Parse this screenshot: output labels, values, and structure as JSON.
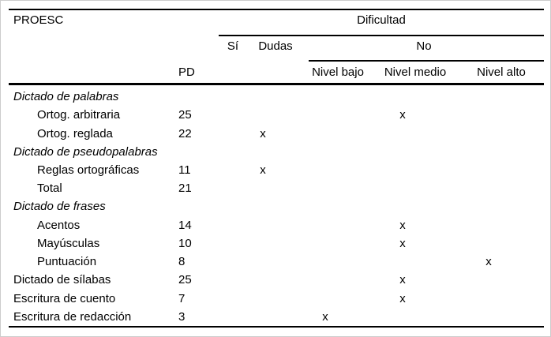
{
  "table": {
    "corner_label": "PROESC",
    "dificultad_header": "Dificultad",
    "col_groups": {
      "si": "Sí",
      "dudas": "Dudas",
      "no": "No"
    },
    "pd_header": "PD",
    "no_levels": [
      "Nivel bajo",
      "Nivel medio",
      "Nivel alto"
    ],
    "mark_glyph": "x",
    "rows": [
      {
        "label": "Dictado de palabras",
        "style": "section",
        "pd": "",
        "mark": ""
      },
      {
        "label": "Ortog. arbitraria",
        "style": "indent",
        "pd": "25",
        "mark": "nivel_medio"
      },
      {
        "label": "Ortog. reglada",
        "style": "indent",
        "pd": "22",
        "mark": "dudas"
      },
      {
        "label": "Dictado de pseudopalabras",
        "style": "section",
        "pd": "",
        "mark": ""
      },
      {
        "label": "Reglas ortográficas",
        "style": "indent",
        "pd": "11",
        "mark": "dudas"
      },
      {
        "label": "Total",
        "style": "indent",
        "pd": "21",
        "mark": ""
      },
      {
        "label": "Dictado de frases",
        "style": "section",
        "pd": "",
        "mark": ""
      },
      {
        "label": "Acentos",
        "style": "indent",
        "pd": "14",
        "mark": "nivel_medio"
      },
      {
        "label": "Mayúsculas",
        "style": "indent",
        "pd": "10",
        "mark": "nivel_medio"
      },
      {
        "label": "Puntuación",
        "style": "indent",
        "pd": "8",
        "mark": "nivel_alto"
      },
      {
        "label": "Dictado de sílabas",
        "style": "plain",
        "pd": "25",
        "mark": "nivel_medio"
      },
      {
        "label": "Escritura de cuento",
        "style": "plain",
        "pd": "7",
        "mark": "nivel_medio"
      },
      {
        "label": "Escritura de redacción",
        "style": "plain",
        "pd": "3",
        "mark": "nivel_bajo"
      }
    ]
  },
  "colors": {
    "text": "#000000",
    "rule": "#000000",
    "background": "#ffffff",
    "frame": "#cccccc"
  }
}
